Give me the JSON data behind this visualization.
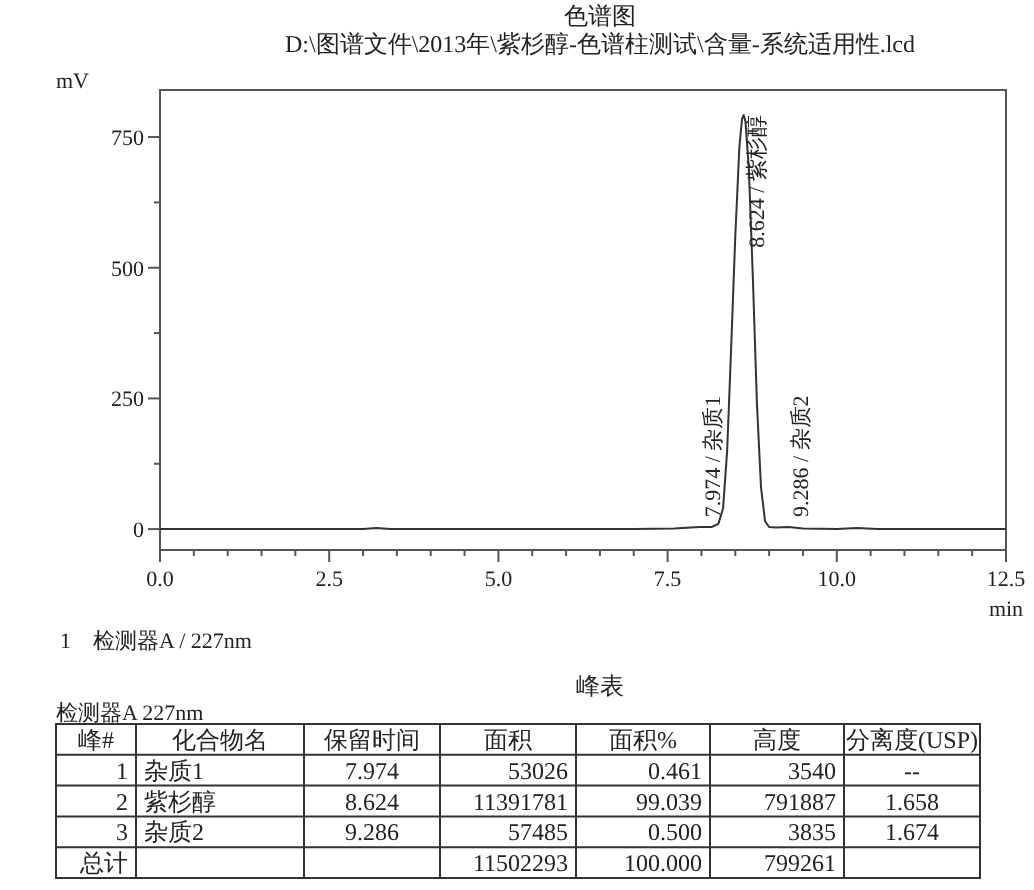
{
  "chart_data": {
    "type": "line",
    "title": "色谱图",
    "subtitle": "D:\\图谱文件\\2013年\\紫杉醇-色谱柱测试\\含量-系统适用性.lcd",
    "xlabel": "min",
    "ylabel": "mV",
    "xlim": [
      0,
      12.5
    ],
    "ylim": [
      -40,
      840
    ],
    "xticks": [
      {
        "value": 0,
        "label": "0.0"
      },
      {
        "value": 0.5,
        "label": null
      },
      {
        "value": 1,
        "label": null
      },
      {
        "value": 1.5,
        "label": null
      },
      {
        "value": 2,
        "label": null
      },
      {
        "value": 2.5,
        "label": "2.5"
      },
      {
        "value": 3,
        "label": null
      },
      {
        "value": 3.5,
        "label": null
      },
      {
        "value": 4,
        "label": null
      },
      {
        "value": 4.5,
        "label": null
      },
      {
        "value": 5,
        "label": "5.0"
      },
      {
        "value": 5.5,
        "label": null
      },
      {
        "value": 6,
        "label": null
      },
      {
        "value": 6.5,
        "label": null
      },
      {
        "value": 7,
        "label": null
      },
      {
        "value": 7.5,
        "label": "7.5"
      },
      {
        "value": 8,
        "label": null
      },
      {
        "value": 8.5,
        "label": null
      },
      {
        "value": 9,
        "label": null
      },
      {
        "value": 9.5,
        "label": null
      },
      {
        "value": 10,
        "label": "10.0"
      },
      {
        "value": 10.5,
        "label": null
      },
      {
        "value": 11,
        "label": null
      },
      {
        "value": 11.5,
        "label": null
      },
      {
        "value": 12,
        "label": null
      },
      {
        "value": 12.5,
        "label": "12.5"
      }
    ],
    "yticks": [
      0,
      {
        "value": 125,
        "label": null
      },
      250,
      {
        "value": 375,
        "label": null
      },
      500,
      {
        "value": 625,
        "label": null
      },
      750
    ],
    "series": [
      {
        "color": "#333333",
        "x": [
          0,
          1.5,
          3.0,
          3.2,
          3.4,
          5.0,
          7.0,
          7.6,
          7.974,
          8.15,
          8.25,
          8.32,
          8.38,
          8.44,
          8.5,
          8.56,
          8.6,
          8.624,
          8.65,
          8.7,
          8.76,
          8.82,
          8.88,
          8.94,
          9.0,
          9.1,
          9.286,
          9.5,
          10.0,
          10.3,
          10.6,
          12.0,
          12.5
        ],
        "values": [
          0,
          0,
          0,
          2,
          0,
          0,
          0,
          1,
          4,
          4,
          10,
          40,
          150,
          350,
          560,
          730,
          785,
          792,
          780,
          690,
          480,
          240,
          80,
          15,
          4,
          3,
          4,
          1,
          0,
          2,
          0,
          0,
          0
        ]
      }
    ],
    "annotations": [
      {
        "text": "7.974 / 杂质1",
        "x": 7.974,
        "y": 3.54
      },
      {
        "text": "8.624 / 紫杉醇",
        "x": 8.624,
        "y": 791.887
      },
      {
        "text": "9.286 / 杂质2",
        "x": 9.286,
        "y": 3.835
      },
      "1　检测器A / 227nm",
      "峰表",
      "检测器A 227nm",
      "峰#",
      "化合物名",
      "保留时间",
      "面积",
      "面积%",
      "高度",
      "分离度(USP)",
      "1",
      "杂质1",
      "7.974",
      "53026",
      "0.461",
      "3540",
      "--",
      "2",
      "紫杉醇",
      "8.624",
      "11391781",
      "99.039",
      "791887",
      "1.658",
      "3",
      "杂质2",
      "9.286",
      "57485",
      "0.500",
      "3835",
      "1.674",
      "总计",
      null,
      null,
      "11502293",
      "100.000",
      "799261",
      null
    ]
  }
}
